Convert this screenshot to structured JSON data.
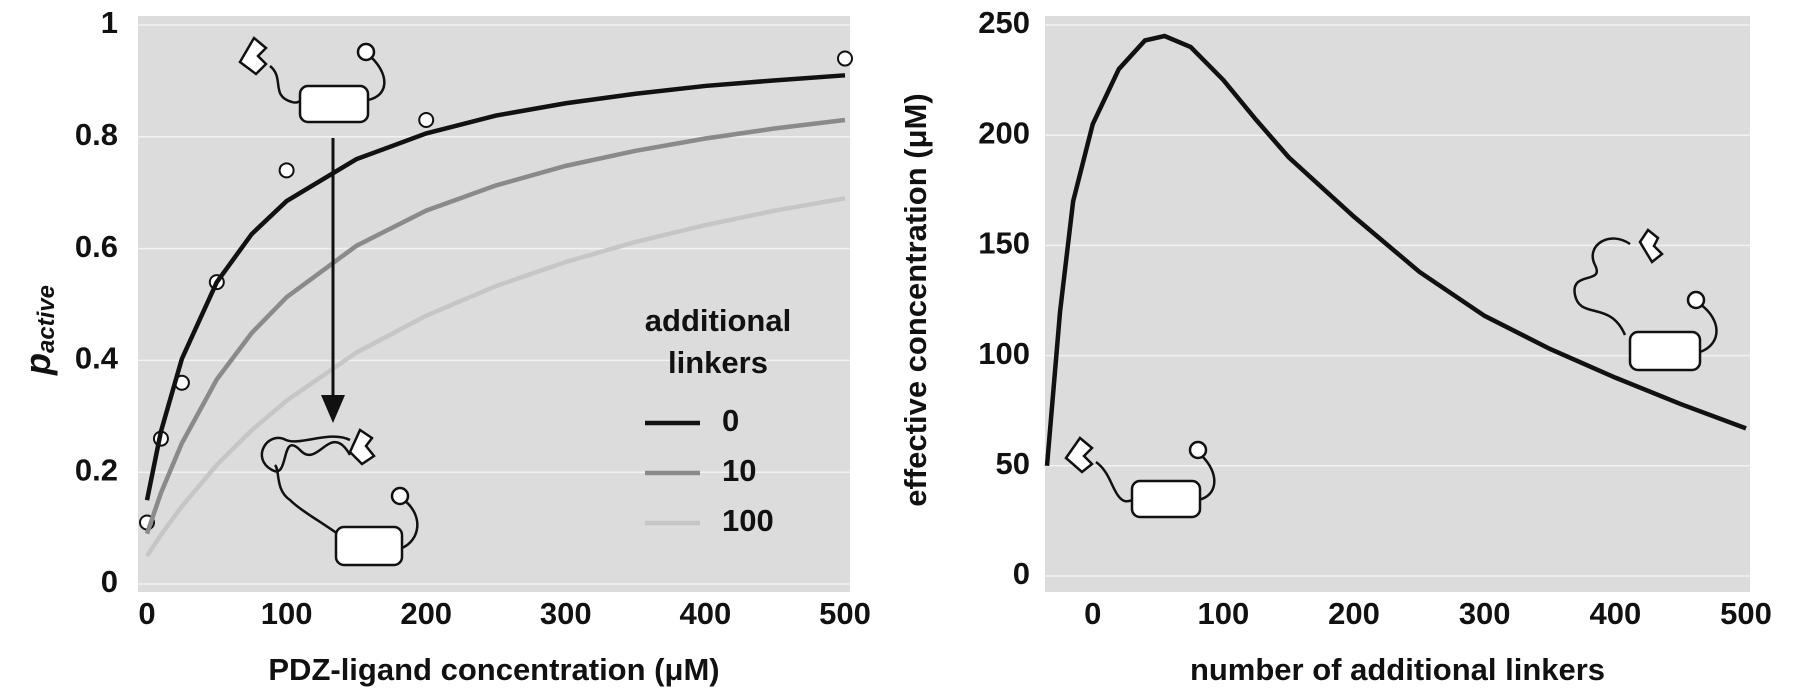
{
  "chart_data": [
    {
      "type": "line",
      "xlabel": "PDZ-ligand concentration (μM)",
      "ylabel": "p",
      "ylabel_sub": "active",
      "xlim": [
        0,
        500
      ],
      "ylim": [
        0,
        1
      ],
      "xticks": [
        0,
        100,
        200,
        300,
        400,
        500
      ],
      "yticks": [
        0,
        0.2,
        0.4,
        0.6,
        0.8,
        1
      ],
      "grid": true,
      "background": "#dcdcdc",
      "grid_color": "#f2f2f2",
      "legend_title": [
        "additional",
        "linkers"
      ],
      "series": [
        {
          "name": "0",
          "color": "#111111",
          "x": [
            0,
            10,
            25,
            50,
            75,
            100,
            150,
            200,
            250,
            300,
            350,
            400,
            450,
            500
          ],
          "values": [
            0.15,
            0.273,
            0.403,
            0.54,
            0.626,
            0.685,
            0.76,
            0.806,
            0.838,
            0.86,
            0.877,
            0.891,
            0.901,
            0.91
          ]
        },
        {
          "name": "10",
          "color": "#8a8a8a",
          "x": [
            0,
            10,
            25,
            50,
            75,
            100,
            150,
            200,
            250,
            300,
            350,
            400,
            450,
            500
          ],
          "values": [
            0.09,
            0.163,
            0.252,
            0.366,
            0.449,
            0.513,
            0.605,
            0.668,
            0.713,
            0.748,
            0.775,
            0.797,
            0.815,
            0.83
          ]
        },
        {
          "name": "100",
          "color": "#c6c6c6",
          "x": [
            0,
            10,
            25,
            50,
            75,
            100,
            150,
            200,
            250,
            300,
            350,
            400,
            450,
            500
          ],
          "values": [
            0.05,
            0.088,
            0.139,
            0.213,
            0.275,
            0.328,
            0.414,
            0.48,
            0.533,
            0.576,
            0.612,
            0.642,
            0.668,
            0.69
          ]
        },
        {
          "marker": true,
          "color": "#111111",
          "x": [
            0,
            10,
            25,
            50,
            100,
            200,
            500
          ],
          "values": [
            0.11,
            0.26,
            0.36,
            0.54,
            0.74,
            0.83,
            0.94
          ]
        }
      ]
    },
    {
      "type": "line",
      "xlabel": "number of additional linkers",
      "ylabel": "effective concentration (μM)",
      "xlim": [
        -35,
        500
      ],
      "ylim": [
        0,
        250
      ],
      "xticks": [
        0,
        100,
        200,
        300,
        400,
        500
      ],
      "yticks": [
        0,
        50,
        100,
        150,
        200,
        250
      ],
      "grid": true,
      "background": "#dcdcdc",
      "grid_color": "#f2f2f2",
      "series": [
        {
          "color": "#111111",
          "x": [
            -35,
            -25,
            -15,
            0,
            20,
            40,
            55,
            75,
            100,
            125,
            150,
            200,
            250,
            300,
            350,
            400,
            450,
            500
          ],
          "values": [
            50,
            120,
            170,
            205,
            230,
            243,
            245,
            240,
            225,
            207,
            190,
            163,
            138,
            118,
            103,
            90,
            78,
            67
          ]
        }
      ]
    }
  ]
}
